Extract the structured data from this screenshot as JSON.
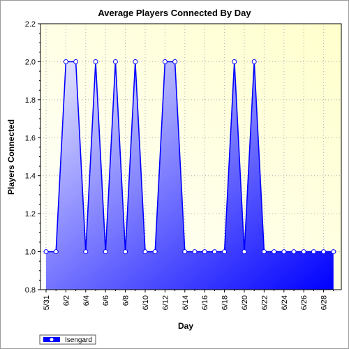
{
  "chart_data": {
    "type": "area",
    "title": "Average Players Connected By Day",
    "xlabel": "Day",
    "ylabel": "Players Connected",
    "ylim": [
      0.8,
      2.2
    ],
    "yticks": [
      "0.8",
      "1.0",
      "1.2",
      "1.4",
      "1.6",
      "1.8",
      "2.0",
      "2.2"
    ],
    "x": [
      "5/31",
      "6/1",
      "6/2",
      "6/3",
      "6/4",
      "6/5",
      "6/6",
      "6/7",
      "6/8",
      "6/9",
      "6/10",
      "6/11",
      "6/12",
      "6/13",
      "6/14",
      "6/15",
      "6/16",
      "6/17",
      "6/18",
      "6/19",
      "6/20",
      "6/21",
      "6/22",
      "6/23",
      "6/24",
      "6/25",
      "6/26",
      "6/27",
      "6/28",
      "6/29"
    ],
    "xticks": [
      "5/31",
      "6/2",
      "6/4",
      "6/6",
      "6/8",
      "6/10",
      "6/12",
      "6/14",
      "6/16",
      "6/18",
      "6/20",
      "6/22",
      "6/24",
      "6/26",
      "6/28"
    ],
    "grid": true,
    "legend_position": "bottom-left",
    "series": [
      {
        "name": "Isengard",
        "color": "#0000ff",
        "values": [
          1,
          1,
          2,
          2,
          1,
          2,
          1,
          2,
          1,
          2,
          1,
          1,
          2,
          2,
          1,
          1,
          1,
          1,
          1,
          2,
          1,
          2,
          1,
          1,
          1,
          1,
          1,
          1,
          1,
          1
        ]
      }
    ],
    "colors": {
      "plot_bg_start": "#ffffff",
      "plot_bg_end": "#ffffcc",
      "fill_start": "#e8e8ff",
      "fill_end": "#0000ff",
      "line": "#0000ff",
      "grid": "#b0b0b0"
    }
  }
}
